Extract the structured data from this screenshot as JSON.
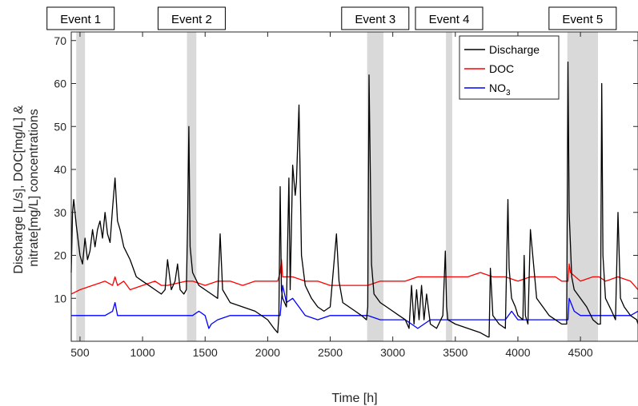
{
  "chart_data": {
    "type": "line",
    "xlabel": "Time [h]",
    "ylabel_lines": [
      "Discharge [L/s], DOC[mg/L] &",
      "nitrate[mg/L] concentrations"
    ],
    "xlim": [
      430,
      4960
    ],
    "ylim": [
      0,
      72
    ],
    "xticks": [
      500,
      1000,
      1500,
      2000,
      2500,
      3000,
      3500,
      4000,
      4500
    ],
    "yticks": [
      10,
      20,
      30,
      40,
      50,
      60,
      70
    ],
    "grid": false,
    "legend_position": "top-right",
    "colors": {
      "Discharge": "#000000",
      "DOC": "#ff0000",
      "NO3": "#0000ff",
      "event_band": "#d9d9d9"
    },
    "legend": [
      {
        "key": "Discharge",
        "label": "Discharge",
        "sub": ""
      },
      {
        "key": "DOC",
        "label": "DOC",
        "sub": ""
      },
      {
        "key": "NO3",
        "label": "NO",
        "sub": "3"
      }
    ],
    "events": [
      {
        "label": "Event 1",
        "start": 470,
        "end": 540
      },
      {
        "label": "Event 2",
        "start": 1355,
        "end": 1430
      },
      {
        "label": "Event 3",
        "start": 2795,
        "end": 2925
      },
      {
        "label": "Event 4",
        "start": 3425,
        "end": 3475
      },
      {
        "label": "Event 5",
        "start": 4395,
        "end": 4640
      }
    ],
    "series": [
      {
        "name": "Discharge",
        "x": [
          430,
          440,
          450,
          470,
          500,
          520,
          540,
          560,
          580,
          600,
          620,
          640,
          660,
          680,
          700,
          720,
          740,
          760,
          780,
          800,
          820,
          850,
          900,
          950,
          1000,
          1050,
          1100,
          1150,
          1180,
          1200,
          1230,
          1260,
          1280,
          1300,
          1330,
          1350,
          1360,
          1370,
          1380,
          1400,
          1450,
          1500,
          1550,
          1600,
          1620,
          1640,
          1700,
          1800,
          1900,
          2000,
          2050,
          2080,
          2090,
          2100,
          2110,
          2120,
          2150,
          2170,
          2180,
          2200,
          2220,
          2230,
          2250,
          2270,
          2300,
          2350,
          2400,
          2450,
          2500,
          2550,
          2570,
          2600,
          2650,
          2700,
          2750,
          2790,
          2800,
          2810,
          2830,
          2850,
          2900,
          2950,
          3000,
          3050,
          3100,
          3130,
          3150,
          3170,
          3190,
          3210,
          3230,
          3250,
          3270,
          3300,
          3350,
          3400,
          3420,
          3430,
          3440,
          3500,
          3600,
          3700,
          3760,
          3770,
          3780,
          3800,
          3850,
          3900,
          3920,
          3930,
          3950,
          3980,
          4000,
          4040,
          4050,
          4060,
          4080,
          4100,
          4150,
          4200,
          4250,
          4300,
          4350,
          4390,
          4400,
          4410,
          4430,
          4450,
          4500,
          4550,
          4600,
          4640,
          4660,
          4670,
          4680,
          4700,
          4750,
          4780,
          4800,
          4820,
          4850,
          4900,
          4950,
          4960
        ],
        "values": [
          16,
          30,
          33,
          27,
          20,
          18,
          24,
          19,
          21,
          26,
          22,
          26,
          28,
          24,
          30,
          25,
          23,
          31,
          38,
          28,
          26,
          22,
          19,
          15,
          14,
          13,
          12,
          11,
          12,
          19,
          12,
          14,
          18,
          12,
          11,
          12,
          28,
          50,
          22,
          16,
          13,
          12,
          11,
          10,
          25,
          12,
          9,
          8,
          7,
          5,
          3,
          2,
          6,
          36,
          12,
          10,
          8,
          38,
          12,
          41,
          34,
          37,
          55,
          20,
          13,
          10,
          8,
          7,
          8,
          25,
          14,
          9,
          8,
          7,
          6,
          5,
          8,
          62,
          18,
          11,
          9,
          8,
          7,
          6,
          5,
          3,
          13,
          4,
          12,
          5,
          13,
          5,
          11,
          4,
          3,
          6,
          21,
          8,
          5,
          4,
          3,
          2,
          1,
          1,
          17,
          6,
          4,
          3,
          33,
          17,
          10,
          8,
          6,
          5,
          20,
          6,
          4,
          26,
          10,
          8,
          6,
          5,
          4,
          4,
          65,
          30,
          15,
          12,
          10,
          8,
          5,
          4,
          4,
          60,
          20,
          10,
          7,
          5,
          30,
          10,
          8,
          6,
          5,
          4
        ]
      },
      {
        "name": "DOC",
        "x": [
          430,
          500,
          600,
          700,
          760,
          780,
          800,
          850,
          900,
          1000,
          1100,
          1150,
          1200,
          1350,
          1400,
          1500,
          1600,
          1700,
          1800,
          1900,
          2000,
          2080,
          2100,
          2110,
          2120,
          2200,
          2300,
          2400,
          2500,
          2600,
          2700,
          2800,
          2900,
          3000,
          3100,
          3200,
          3300,
          3400,
          3500,
          3600,
          3700,
          3800,
          3900,
          4000,
          4100,
          4200,
          4300,
          4350,
          4400,
          4410,
          4420,
          4500,
          4600,
          4650,
          4700,
          4800,
          4900,
          4930,
          4960
        ],
        "values": [
          11,
          12,
          13,
          14,
          13,
          15,
          13,
          14,
          12,
          13,
          14,
          13,
          13,
          14,
          14,
          13,
          14,
          14,
          13,
          14,
          14,
          14,
          16,
          19,
          15,
          15,
          14,
          14,
          13,
          13,
          13,
          13,
          14,
          14,
          14,
          15,
          15,
          15,
          15,
          15,
          16,
          15,
          15,
          14,
          15,
          15,
          15,
          14,
          14,
          18,
          16,
          14,
          15,
          15,
          14,
          15,
          14,
          13,
          12
        ]
      },
      {
        "name": "NO3",
        "x": [
          430,
          500,
          600,
          700,
          760,
          780,
          800,
          900,
          1000,
          1100,
          1150,
          1200,
          1350,
          1400,
          1450,
          1500,
          1530,
          1550,
          1600,
          1700,
          1800,
          1900,
          2000,
          2100,
          2120,
          2150,
          2200,
          2250,
          2300,
          2400,
          2500,
          2600,
          2700,
          2800,
          2900,
          3000,
          3100,
          3150,
          3200,
          3250,
          3300,
          3400,
          3500,
          3600,
          3700,
          3800,
          3900,
          3950,
          4000,
          4100,
          4200,
          4300,
          4390,
          4400,
          4410,
          4450,
          4500,
          4600,
          4700,
          4800,
          4900,
          4960
        ],
        "values": [
          6,
          6,
          6,
          6,
          7,
          9,
          6,
          6,
          6,
          6,
          6,
          6,
          6,
          6,
          7,
          6,
          3,
          4,
          5,
          6,
          6,
          6,
          6,
          6,
          13,
          9,
          10,
          8,
          6,
          5,
          6,
          6,
          6,
          6,
          5,
          5,
          5,
          4,
          3,
          4,
          5,
          5,
          5,
          5,
          5,
          5,
          5,
          7,
          5,
          5,
          5,
          5,
          5,
          5,
          10,
          7,
          6,
          6,
          6,
          6,
          6,
          7
        ]
      }
    ]
  }
}
